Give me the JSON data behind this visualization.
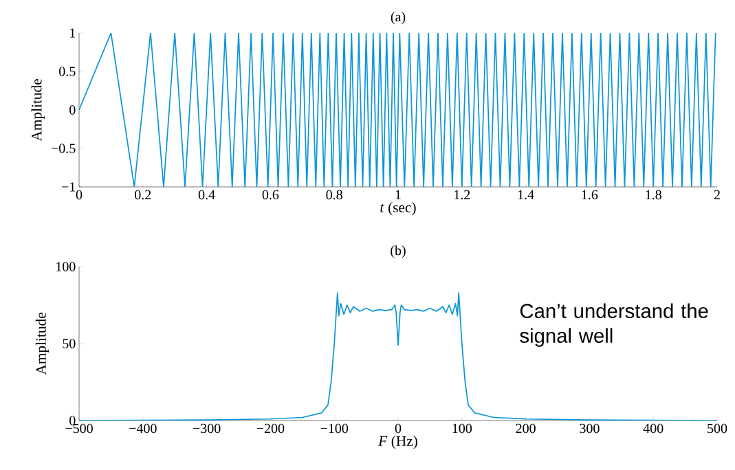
{
  "chart_data": [
    {
      "type": "line",
      "title": "(a)",
      "xlabel": "*t* (sec)",
      "ylabel": "Amplitude",
      "x": [
        0,
        0.1,
        0.173,
        0.224,
        0.265,
        0.3,
        0.332,
        0.361,
        0.387,
        0.412,
        0.436,
        0.458,
        0.48,
        0.5,
        0.52,
        0.539,
        0.557,
        0.574,
        0.592,
        0.608,
        0.624,
        0.64,
        0.656,
        0.671,
        0.686,
        0.7,
        0.714,
        0.728,
        0.742,
        0.755,
        0.768,
        0.781,
        0.794,
        0.806,
        0.819,
        0.831,
        0.843,
        0.854,
        0.866,
        0.877,
        0.889,
        0.9,
        0.911,
        0.922,
        0.933,
        0.943,
        0.954,
        0.964,
        0.975,
        0.985,
        0.995,
        1.005,
        1.02,
        1.035,
        1.05,
        1.065,
        1.08,
        1.095,
        1.11,
        1.125,
        1.14,
        1.155,
        1.17,
        1.185,
        1.2,
        1.215,
        1.23,
        1.245,
        1.26,
        1.275,
        1.29,
        1.305,
        1.32,
        1.335,
        1.35,
        1.365,
        1.38,
        1.395,
        1.41,
        1.425,
        1.44,
        1.455,
        1.47,
        1.485,
        1.5,
        1.515,
        1.53,
        1.545,
        1.56,
        1.575,
        1.59,
        1.605,
        1.62,
        1.635,
        1.65,
        1.665,
        1.68,
        1.695,
        1.71,
        1.725,
        1.74,
        1.755,
        1.77,
        1.785,
        1.8,
        1.815,
        1.83,
        1.845,
        1.86,
        1.875,
        1.89,
        1.905,
        1.92,
        1.935,
        1.95,
        1.965,
        1.98,
        1.995
      ],
      "series": [
        {
          "color": "#0e96d6",
          "values": [
            0,
            1,
            -1,
            1,
            -1,
            1,
            -1,
            1,
            -1,
            1,
            -1,
            1,
            -1,
            1,
            -1,
            1,
            -1,
            1,
            -1,
            1,
            -1,
            1,
            -1,
            1,
            -1,
            1,
            -1,
            1,
            -1,
            1,
            -1,
            1,
            -1,
            1,
            -1,
            1,
            -1,
            1,
            -1,
            1,
            -1,
            1,
            -1,
            1,
            -1,
            1,
            -1,
            1,
            -1,
            1,
            -1,
            1,
            -1,
            1,
            -1,
            1,
            -1,
            1,
            -1,
            1,
            -1,
            1,
            -1,
            1,
            -1,
            1,
            -1,
            1,
            -1,
            1,
            -1,
            1,
            -1,
            1,
            -1,
            1,
            -1,
            1,
            -1,
            1,
            -1,
            1,
            -1,
            1,
            -1,
            1,
            -1,
            1,
            -1,
            1,
            -1,
            1,
            -1,
            1,
            -1,
            1,
            -1,
            1,
            -1,
            1,
            -1,
            1,
            -1,
            1,
            -1,
            1,
            -1,
            1,
            -1,
            1,
            -1,
            1,
            -1,
            1,
            -1,
            1,
            -1,
            1
          ]
        }
      ],
      "xlim": [
        0,
        2
      ],
      "ylim": [
        -1,
        1
      ],
      "xticks": [
        0,
        0.2,
        0.4,
        0.6,
        0.8,
        1,
        1.2,
        1.4,
        1.6,
        1.8,
        2
      ],
      "yticks": [
        {
          "value": -1,
          "label": "−1"
        },
        {
          "value": -0.5,
          "label": "−0.5"
        },
        0,
        0.5,
        1
      ]
    },
    {
      "type": "line",
      "title": "(b)",
      "xlabel": "*F* (Hz)",
      "ylabel": "Amplitude",
      "x": [
        -500,
        -400,
        -300,
        -200,
        -150,
        -120,
        -110,
        -105,
        -100,
        -97,
        -95,
        -93,
        -90,
        -85,
        -80,
        -75,
        -70,
        -60,
        -50,
        -40,
        -30,
        -20,
        -10,
        -5,
        -3,
        0,
        3,
        5,
        10,
        20,
        30,
        40,
        50,
        60,
        70,
        75,
        80,
        85,
        90,
        93,
        95,
        97,
        100,
        105,
        110,
        120,
        150,
        200,
        300,
        400,
        500
      ],
      "series": [
        {
          "color": "#0e96d6",
          "values": [
            0,
            0.2,
            0.4,
            1,
            2,
            5,
            10,
            25,
            50,
            70,
            83,
            68,
            76,
            69,
            75,
            70,
            74,
            71,
            73,
            71,
            72,
            71.5,
            72,
            75,
            70,
            49,
            70,
            75,
            72,
            71.5,
            72,
            71,
            73,
            71,
            74,
            70,
            75,
            69,
            76,
            68,
            83,
            70,
            50,
            25,
            10,
            5,
            2,
            1,
            0.4,
            0.2,
            0
          ]
        }
      ],
      "xlim": [
        -500,
        500
      ],
      "ylim": [
        0,
        100
      ],
      "xticks": [
        {
          "value": -500,
          "label": "−500"
        },
        {
          "value": -400,
          "label": "−400"
        },
        {
          "value": -300,
          "label": "−300"
        },
        {
          "value": -200,
          "label": "−200"
        },
        {
          "value": -100,
          "label": "−100"
        },
        0,
        100,
        200,
        300,
        400,
        500
      ],
      "yticks": [
        0,
        50,
        100
      ],
      "annotations": [
        "Can’t understand the signal well"
      ]
    }
  ]
}
